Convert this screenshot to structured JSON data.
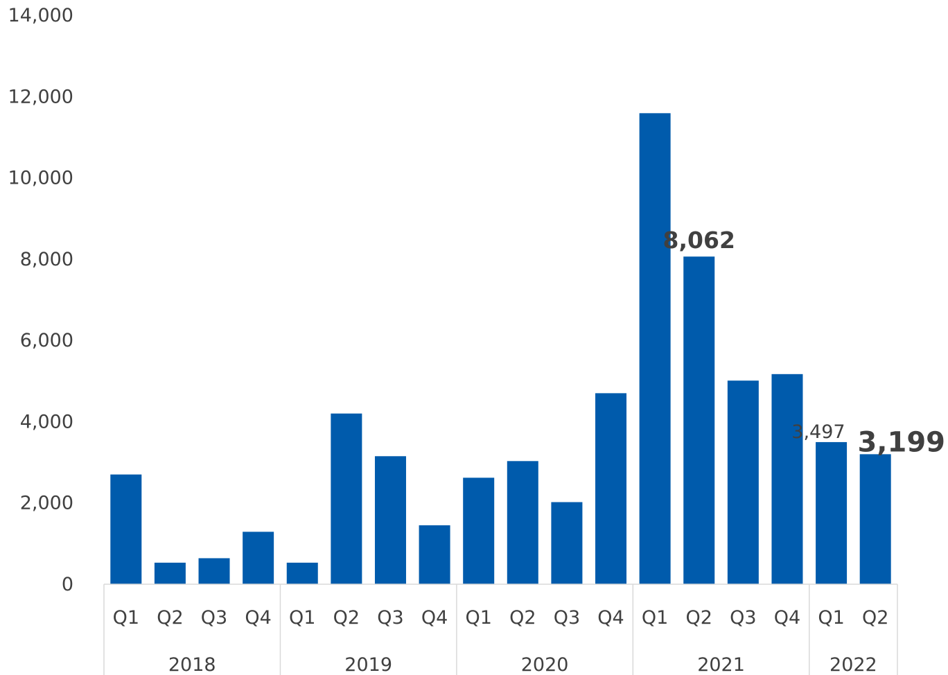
{
  "chart_data": {
    "type": "bar",
    "title": "",
    "xlabel": "",
    "ylabel": "",
    "ylim": [
      0,
      14000
    ],
    "yticks": [
      0,
      2000,
      4000,
      6000,
      8000,
      10000,
      12000,
      14000
    ],
    "ytick_labels": [
      "0",
      "2,000",
      "4,000",
      "6,000",
      "8,000",
      "10,000",
      "12,000",
      "14,000"
    ],
    "grid": false,
    "bar_color": "#005bac",
    "categories": [
      "Q1",
      "Q2",
      "Q3",
      "Q4",
      "Q1",
      "Q2",
      "Q3",
      "Q4",
      "Q1",
      "Q2",
      "Q3",
      "Q4",
      "Q1",
      "Q2",
      "Q3",
      "Q4",
      "Q1",
      "Q2"
    ],
    "groups": [
      {
        "label": "2018",
        "count": 4
      },
      {
        "label": "2019",
        "count": 4
      },
      {
        "label": "2020",
        "count": 4
      },
      {
        "label": "2021",
        "count": 4
      },
      {
        "label": "2022",
        "count": 2
      }
    ],
    "values": [
      2700,
      530,
      640,
      1290,
      530,
      4200,
      3150,
      1450,
      2620,
      3030,
      2020,
      4700,
      11590,
      8062,
      5010,
      5170,
      3497,
      3199
    ],
    "data_labels": [
      {
        "index": 13,
        "text": "8,062",
        "bold": true,
        "size": "large"
      },
      {
        "index": 16,
        "text": "3,497",
        "bold": false,
        "size": "normal"
      },
      {
        "index": 17,
        "text": "3,199",
        "bold": true,
        "size": "xlarge"
      }
    ]
  }
}
